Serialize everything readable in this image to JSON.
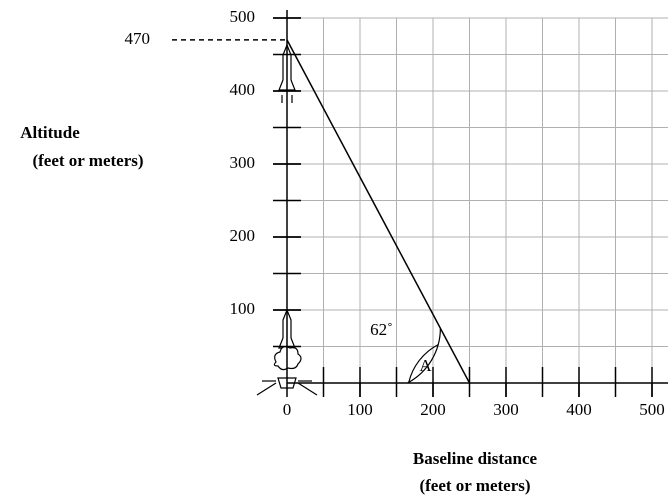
{
  "chart_data": {
    "type": "line",
    "x": [
      0,
      250
    ],
    "values": [
      470,
      0
    ],
    "color": "#000000",
    "xlim": [
      0,
      522
    ],
    "ylim": [
      0,
      500
    ],
    "xticks": [
      0,
      100,
      200,
      300,
      400,
      500
    ],
    "yticks": [
      100,
      200,
      300,
      400,
      500
    ],
    "grid": true,
    "grid_step": 50,
    "xlabel": [
      "Baseline distance",
      "(feet or meters)"
    ],
    "ylabel": [
      "Altitude",
      "(feet or meters)"
    ],
    "annotations": [
      "62˚",
      "A"
    ]
  }
}
